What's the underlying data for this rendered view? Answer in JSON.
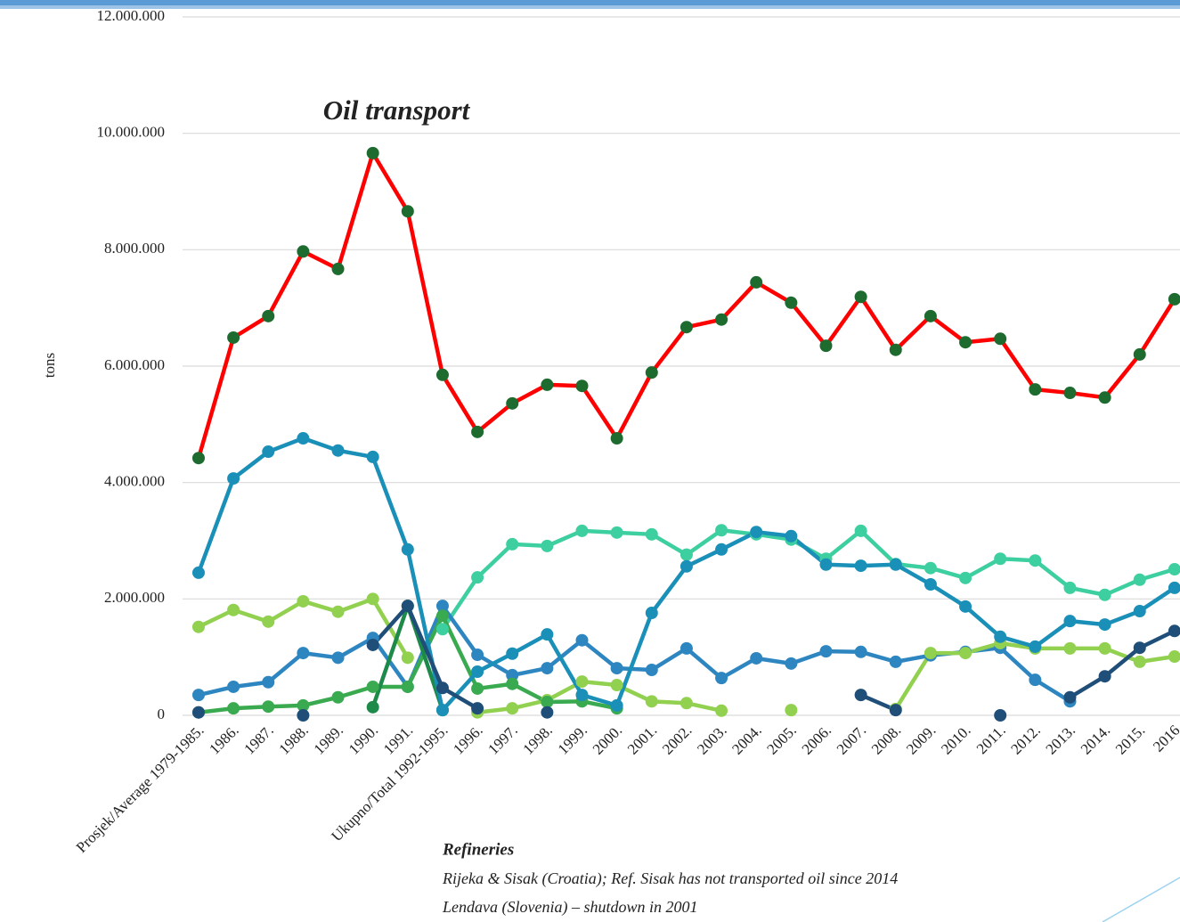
{
  "chart_data": {
    "type": "line",
    "title": "Oil transport",
    "ylabel": "tons",
    "annotations": [
      "Refineries",
      "Rijeka & Sisak (Croatia); Ref. Sisak has not transported oil since 2014",
      "Lendava (Slovenia) – shutdown in 2001"
    ],
    "categories": [
      "Prosjek/Average 1979-1985.",
      "1986.",
      "1987.",
      "1988.",
      "1989.",
      "1990.",
      "1991.",
      "Ukupno/Total 1992-1995.",
      "1996.",
      "1997.",
      "1998.",
      "1999.",
      "2000.",
      "2001.",
      "2002.",
      "2003.",
      "2004.",
      "2005.",
      "2006.",
      "2007.",
      "2008.",
      "2009.",
      "2010.",
      "2011.",
      "2012.",
      "2013.",
      "2014.",
      "2015.",
      "2016"
    ],
    "ylim": [
      0,
      12000000
    ],
    "yticks": [
      0,
      {
        "value": 2000000,
        "label": "2.000.000"
      },
      {
        "value": 4000000,
        "label": "4.000.000"
      },
      {
        "value": 6000000,
        "label": "6.000.000"
      },
      {
        "value": 8000000,
        "label": "8.000.000"
      },
      {
        "value": 10000000,
        "label": "10.000.000"
      },
      {
        "value": 12000000,
        "label": "12.000.000"
      }
    ],
    "grid": true,
    "series": [
      {
        "color": "#ff0000",
        "marker_color": "#1e6b30",
        "values": [
          4420000,
          6490000,
          6860000,
          7970000,
          7670000,
          9660000,
          8660000,
          5850000,
          4870000,
          5360000,
          5680000,
          5660000,
          4760000,
          5890000,
          6670000,
          6800000,
          7440000,
          7090000,
          6350000,
          7190000,
          6280000,
          6860000,
          6410000,
          6470000,
          5600000,
          5540000,
          5460000,
          6200000,
          7150000
        ]
      },
      {
        "color": "#3ecfa0",
        "values": [
          null,
          null,
          null,
          null,
          null,
          null,
          null,
          1480000,
          2370000,
          2940000,
          2910000,
          3170000,
          3140000,
          3110000,
          2760000,
          3180000,
          3110000,
          3020000,
          2690000,
          3170000,
          2600000,
          2530000,
          2360000,
          2690000,
          2660000,
          2190000,
          2070000,
          2330000,
          2510000
        ]
      },
      {
        "color": "#2e86c1",
        "values": [
          350000,
          490000,
          570000,
          1070000,
          990000,
          1330000,
          490000,
          1880000,
          1040000,
          690000,
          810000,
          1290000,
          810000,
          780000,
          1150000,
          640000,
          980000,
          890000,
          1100000,
          1090000,
          920000,
          1030000,
          1090000,
          1160000,
          610000,
          240000,
          null,
          null,
          null
        ]
      },
      {
        "color": "#92d050",
        "values": [
          1520000,
          1810000,
          1610000,
          1960000,
          1780000,
          2000000,
          990000,
          null,
          50000,
          120000,
          260000,
          580000,
          520000,
          240000,
          210000,
          80000,
          null,
          90000,
          null,
          null,
          110000,
          1070000,
          1070000,
          1240000,
          1150000,
          1150000,
          1150000,
          920000,
          1010000
        ]
      },
      {
        "color": "#3aaa50",
        "values": [
          50000,
          120000,
          150000,
          170000,
          310000,
          490000,
          490000,
          1710000,
          460000,
          540000,
          230000,
          240000,
          120000,
          null,
          null,
          null,
          null,
          null,
          null,
          null,
          null,
          null,
          null,
          null,
          null,
          null,
          null,
          null,
          null
        ]
      },
      {
        "color": "#1e8a4a",
        "values": [
          null,
          null,
          null,
          null,
          null,
          140000,
          1880000,
          90000,
          null,
          null,
          null,
          null,
          null,
          null,
          null,
          null,
          null,
          null,
          null,
          null,
          null,
          null,
          null,
          null,
          null,
          null,
          null,
          null,
          null
        ]
      },
      {
        "color": "#1a8fb8",
        "values": [
          2450000,
          4070000,
          4530000,
          4760000,
          4550000,
          4440000,
          2850000,
          90000,
          750000,
          1060000,
          1390000,
          350000,
          170000,
          1760000,
          2560000,
          2850000,
          3150000,
          3080000,
          2590000,
          2570000,
          2590000,
          2250000,
          1870000,
          1350000,
          1180000,
          1620000,
          1560000,
          1790000,
          2190000
        ]
      },
      {
        "color": "#1f4e79",
        "values": [
          50000,
          null,
          null,
          0,
          null,
          1210000,
          1880000,
          470000,
          120000,
          null,
          50000,
          null,
          null,
          null,
          null,
          null,
          null,
          null,
          null,
          350000,
          90000,
          null,
          null,
          0,
          null,
          310000,
          670000,
          1160000,
          1450000
        ]
      }
    ]
  }
}
